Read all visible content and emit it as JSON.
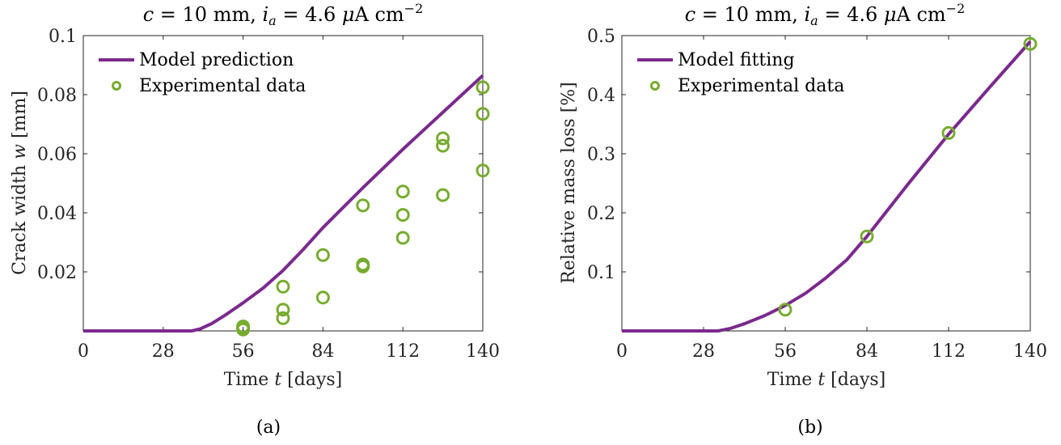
{
  "colors": {
    "line": "#7B2A8E",
    "marker": "#77AC30",
    "axis": "#262626"
  },
  "chart_data": [
    {
      "type": "line",
      "title_parts": [
        "c",
        " = 10 mm, ",
        "i",
        "a",
        " = 4.6 ",
        "μ",
        "A cm",
        "−2"
      ],
      "xlabel_parts": [
        "Time ",
        "t",
        " [days]"
      ],
      "ylabel_parts": [
        "Crack width ",
        "w",
        " [mm]"
      ],
      "caption": "(a)",
      "xlim": [
        0,
        140
      ],
      "ylim": [
        0,
        0.1
      ],
      "xticks": [
        0,
        28,
        56,
        84,
        112,
        140
      ],
      "yticks": [
        0.02,
        0.04,
        0.06,
        0.08,
        0.1
      ],
      "ytick_labels": [
        "0.02",
        "0.04",
        "0.06",
        "0.08",
        "0.1"
      ],
      "legend_position": "top-left",
      "grid": false,
      "series": [
        {
          "name": "Model prediction",
          "kind": "line",
          "x": [
            0,
            10,
            20,
            30,
            38,
            41,
            45,
            50,
            56,
            63,
            70,
            77,
            84,
            98,
            112,
            126,
            140
          ],
          "y": [
            0,
            0,
            0,
            0,
            0,
            0.0007,
            0.0025,
            0.0055,
            0.0095,
            0.0145,
            0.0205,
            0.0275,
            0.035,
            0.0485,
            0.0615,
            0.074,
            0.0865
          ]
        },
        {
          "name": "Experimental data",
          "kind": "scatter",
          "x": [
            56,
            56,
            56,
            70,
            70,
            70,
            84,
            84,
            98,
            98,
            98,
            112,
            112,
            112,
            126,
            126,
            126,
            140,
            140,
            140
          ],
          "y": [
            0.0015,
            0.001,
            0.0005,
            0.015,
            0.0072,
            0.0043,
            0.0257,
            0.0113,
            0.0425,
            0.0225,
            0.0218,
            0.0472,
            0.0393,
            0.0315,
            0.0652,
            0.0627,
            0.046,
            0.0825,
            0.0735,
            0.0543
          ]
        }
      ]
    },
    {
      "type": "line",
      "title_parts": [
        "c",
        " = 10 mm, ",
        "i",
        "a",
        " = 4.6 ",
        "μ",
        "A cm",
        "−2"
      ],
      "xlabel_parts": [
        "Time ",
        "t",
        " [days]"
      ],
      "ylabel": "Relative mass loss [%]",
      "caption": "(b)",
      "xlim": [
        0,
        140
      ],
      "ylim": [
        0,
        0.5
      ],
      "xticks": [
        0,
        28,
        56,
        84,
        112,
        140
      ],
      "yticks": [
        0.1,
        0.2,
        0.3,
        0.4,
        0.5
      ],
      "ytick_labels": [
        "0.1",
        "0.2",
        "0.3",
        "0.4",
        "0.5"
      ],
      "legend_position": "top-left",
      "grid": false,
      "series": [
        {
          "name": "Model fitting",
          "kind": "line",
          "x": [
            0,
            10,
            20,
            30,
            33,
            37,
            42,
            49,
            56,
            63,
            70,
            77,
            84,
            98,
            112,
            126,
            140
          ],
          "y": [
            0,
            0,
            0,
            0,
            0,
            0.004,
            0.012,
            0.026,
            0.043,
            0.064,
            0.09,
            0.12,
            0.16,
            0.248,
            0.333,
            0.412,
            0.49
          ]
        },
        {
          "name": "Experimental data",
          "kind": "scatter",
          "x": [
            56,
            84,
            112,
            140
          ],
          "y": [
            0.036,
            0.16,
            0.335,
            0.486
          ]
        }
      ]
    }
  ]
}
